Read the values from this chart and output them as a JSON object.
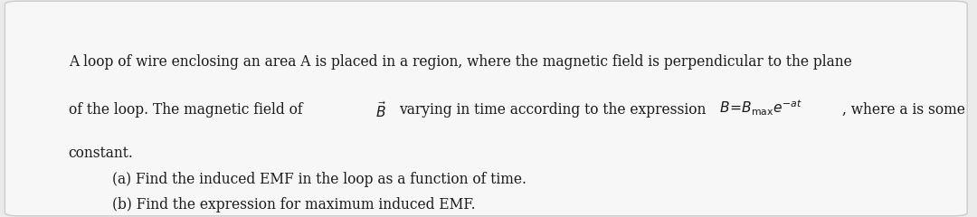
{
  "background_color": "#ebebeb",
  "box_color": "#f7f7f7",
  "text_color": "#1a1a1a",
  "line1": "A loop of wire enclosing an area A is placed in a region, where the magnetic field is perpendicular to the plane",
  "line2_prefix": "of the loop. The magnetic field of ",
  "line2_middle": "varying in time according to the expression ",
  "line2_suffix": ", where a is some",
  "line3": "constant.",
  "line4": "(a) Find the induced EMF in the loop as a function of time.",
  "line5": "(b) Find the expression for maximum induced EMF.",
  "font_size": 11.2,
  "fig_width": 10.8,
  "fig_height": 2.4
}
